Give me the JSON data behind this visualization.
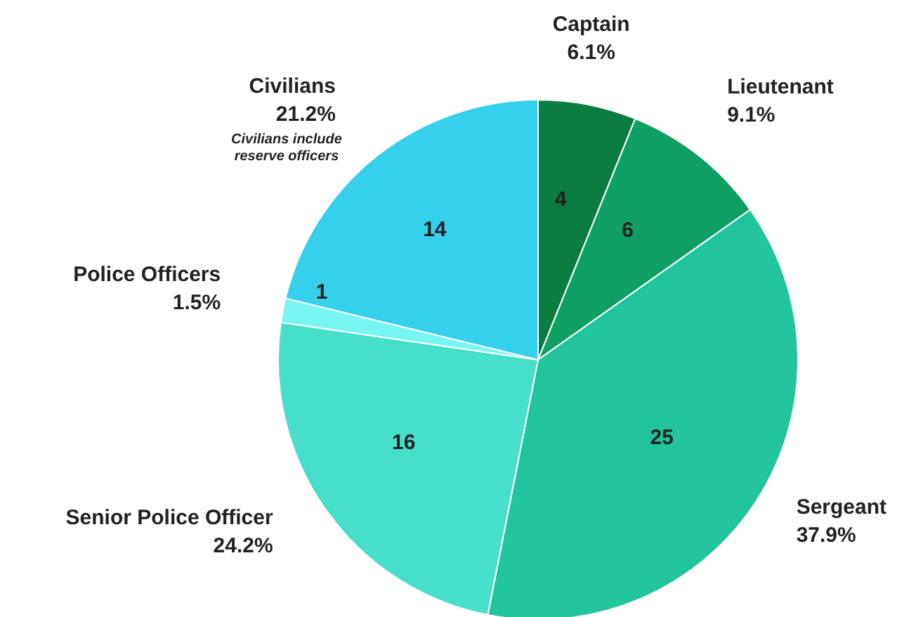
{
  "chart_data": {
    "type": "pie",
    "categories": [
      "Captain",
      "Lieutenant",
      "Sergeant",
      "Senior Police Officer",
      "Police Officers",
      "Civilians"
    ],
    "values": [
      6.1,
      9.1,
      37.9,
      24.2,
      1.5,
      21.2
    ],
    "colors": [
      "#0b7d40",
      "#10a064",
      "#22c49e",
      "#46dfc9",
      "#78f6f4",
      "#35d0ec"
    ],
    "value_labels": [
      "6.1%",
      "9.1%",
      "37.9%",
      "24.2%",
      "1.5%",
      "21.2%"
    ],
    "annotations": [
      "Civilians include reserve officers",
      {
        "text": "4",
        "x": "Captain"
      },
      {
        "text": "6",
        "x": "Lieutenant"
      },
      {
        "text": "25",
        "x": "Sergeant"
      },
      {
        "text": "16",
        "x": "Senior Police Officer"
      },
      {
        "text": "1",
        "x": "Police Officers"
      },
      {
        "text": "14",
        "x": "Civilians"
      }
    ]
  }
}
